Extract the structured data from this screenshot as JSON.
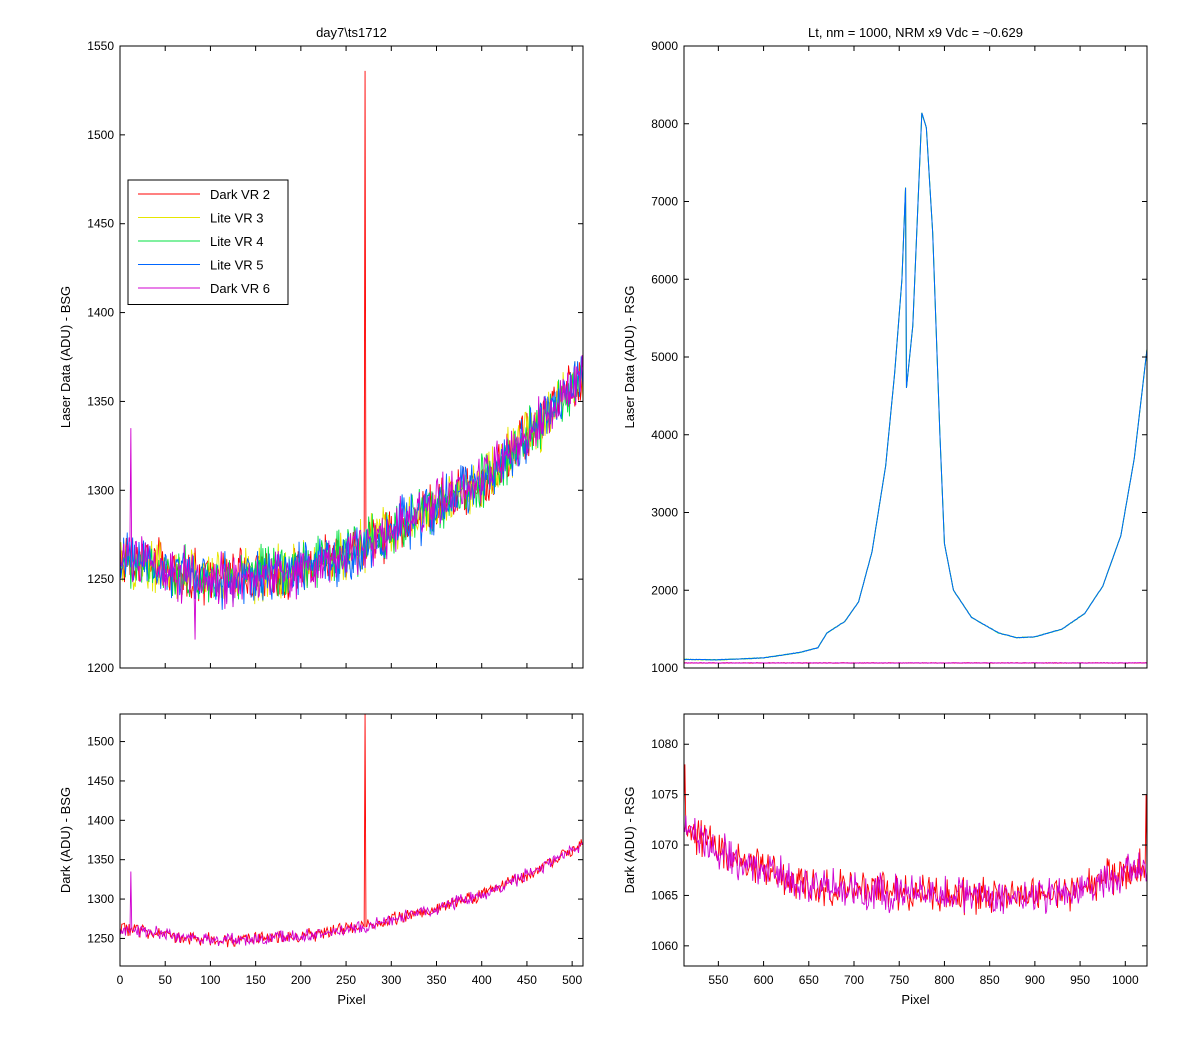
{
  "chart_data": [
    {
      "id": "top-left",
      "type": "line",
      "title": "day7\\ts1712",
      "xlabel": "",
      "ylabel": "Laser Data (ADU) - BSG",
      "xlim": [
        0,
        512
      ],
      "ylim": [
        1200,
        1550
      ],
      "xticks": [
        0,
        50,
        100,
        150,
        200,
        250,
        300,
        350,
        400,
        450,
        500
      ],
      "yticks": [
        1200,
        1250,
        1300,
        1350,
        1400,
        1450,
        1500,
        1550
      ],
      "show_xtick_labels": false,
      "legend": {
        "placement": "upper-left",
        "entries": [
          {
            "name": "Dark VR 2",
            "color": "#ff0000"
          },
          {
            "name": "Lite VR 3",
            "color": "#e6e600"
          },
          {
            "name": "Lite VR 4",
            "color": "#00e040"
          },
          {
            "name": "Lite VR 5",
            "color": "#0066ff"
          },
          {
            "name": "Dark VR 6",
            "color": "#d000d0"
          }
        ]
      },
      "series_shape": {
        "x_range": [
          0,
          512
        ],
        "baseline": [
          [
            0,
            1262
          ],
          [
            50,
            1255
          ],
          [
            110,
            1250
          ],
          [
            200,
            1255
          ],
          [
            270,
            1268
          ],
          [
            330,
            1285
          ],
          [
            400,
            1305
          ],
          [
            450,
            1330
          ],
          [
            512,
            1365
          ]
        ],
        "noise_amplitude": 18,
        "spikes": [
          {
            "series": "Dark VR 2",
            "x": 271,
            "y": 1536
          },
          {
            "series": "Dark VR 6",
            "x": 12,
            "y": 1335
          },
          {
            "series": "Dark VR 6",
            "x": 83,
            "y": 1216
          }
        ]
      },
      "series": [
        {
          "name": "Dark VR 2",
          "color": "#ff0000"
        },
        {
          "name": "Lite VR 3",
          "color": "#e6e600"
        },
        {
          "name": "Lite VR 4",
          "color": "#00e040"
        },
        {
          "name": "Lite VR 5",
          "color": "#0066ff"
        },
        {
          "name": "Dark VR 6",
          "color": "#d000d0"
        }
      ]
    },
    {
      "id": "top-right",
      "type": "line",
      "title": "Lt, nm = 1000, NRM x9 Vdc = ~0.629",
      "xlabel": "",
      "ylabel": "Laser Data (ADU) - RSG",
      "xlim": [
        512,
        1024
      ],
      "ylim": [
        1000,
        9000
      ],
      "xticks": [
        550,
        600,
        650,
        700,
        750,
        800,
        850,
        900,
        950,
        1000
      ],
      "yticks": [
        1000,
        2000,
        3000,
        4000,
        5000,
        6000,
        7000,
        8000,
        9000
      ],
      "show_xtick_labels": false,
      "series_shape": {
        "lite_curve": [
          [
            512,
            1110
          ],
          [
            550,
            1105
          ],
          [
            600,
            1130
          ],
          [
            640,
            1200
          ],
          [
            660,
            1260
          ],
          [
            670,
            1450
          ],
          [
            690,
            1600
          ],
          [
            705,
            1850
          ],
          [
            720,
            2500
          ],
          [
            735,
            3600
          ],
          [
            745,
            4800
          ],
          [
            753,
            6000
          ],
          [
            757,
            7180
          ],
          [
            758,
            4600
          ],
          [
            765,
            5400
          ],
          [
            775,
            8140
          ],
          [
            780,
            7950
          ],
          [
            787,
            6600
          ],
          [
            795,
            4000
          ],
          [
            800,
            2600
          ],
          [
            810,
            2000
          ],
          [
            830,
            1650
          ],
          [
            860,
            1450
          ],
          [
            880,
            1390
          ],
          [
            900,
            1400
          ],
          [
            930,
            1500
          ],
          [
            955,
            1700
          ],
          [
            975,
            2050
          ],
          [
            995,
            2700
          ],
          [
            1010,
            3700
          ],
          [
            1024,
            5100
          ]
        ],
        "dark_level": 1065
      },
      "series": [
        {
          "name": "Dark VR 2",
          "color": "#ff0000"
        },
        {
          "name": "Lite VR 3",
          "color": "#e6e600"
        },
        {
          "name": "Lite VR 4",
          "color": "#00e040"
        },
        {
          "name": "Lite VR 5",
          "color": "#0066ff"
        },
        {
          "name": "Dark VR 6",
          "color": "#d000d0"
        }
      ]
    },
    {
      "id": "bottom-left",
      "type": "line",
      "title": "",
      "xlabel": "Pixel",
      "ylabel": "Dark (ADU) - BSG",
      "xlim": [
        0,
        512
      ],
      "ylim": [
        1215,
        1535
      ],
      "xticks": [
        0,
        50,
        100,
        150,
        200,
        250,
        300,
        350,
        400,
        450,
        500
      ],
      "yticks": [
        1250,
        1300,
        1350,
        1400,
        1450,
        1500
      ],
      "show_xtick_labels": true,
      "series_shape": {
        "baseline": [
          [
            0,
            1262
          ],
          [
            50,
            1255
          ],
          [
            110,
            1247
          ],
          [
            200,
            1253
          ],
          [
            270,
            1265
          ],
          [
            330,
            1282
          ],
          [
            400,
            1305
          ],
          [
            450,
            1330
          ],
          [
            512,
            1370
          ]
        ],
        "noise_amplitude": 10,
        "spikes": [
          {
            "series": "Dark VR 2",
            "x": 271,
            "y": 1536
          },
          {
            "series": "Dark VR 6",
            "x": 12,
            "y": 1335
          }
        ]
      },
      "series": [
        {
          "name": "Dark VR 2",
          "color": "#ff0000"
        },
        {
          "name": "Dark VR 6",
          "color": "#d000d0"
        }
      ]
    },
    {
      "id": "bottom-right",
      "type": "line",
      "title": "",
      "xlabel": "Pixel",
      "ylabel": "Dark (ADU) - RSG",
      "xlim": [
        512,
        1024
      ],
      "ylim": [
        1058,
        1083
      ],
      "xticks": [
        550,
        600,
        650,
        700,
        750,
        800,
        850,
        900,
        950,
        1000
      ],
      "yticks": [
        1060,
        1065,
        1070,
        1075,
        1080
      ],
      "show_xtick_labels": true,
      "series_shape": {
        "baseline": [
          [
            512,
            1072
          ],
          [
            540,
            1070
          ],
          [
            580,
            1068
          ],
          [
            650,
            1066
          ],
          [
            700,
            1065.5
          ],
          [
            800,
            1065
          ],
          [
            900,
            1065
          ],
          [
            950,
            1065.5
          ],
          [
            990,
            1067
          ],
          [
            1024,
            1068
          ]
        ],
        "noise_amplitude": 2.2,
        "spikes": [
          {
            "series": "Dark VR 2",
            "x": 513,
            "y": 1078
          },
          {
            "series": "Dark VR 2",
            "x": 1023,
            "y": 1075
          }
        ]
      },
      "series": [
        {
          "name": "Dark VR 2",
          "color": "#ff0000"
        },
        {
          "name": "Dark VR 6",
          "color": "#d000d0"
        }
      ]
    }
  ]
}
